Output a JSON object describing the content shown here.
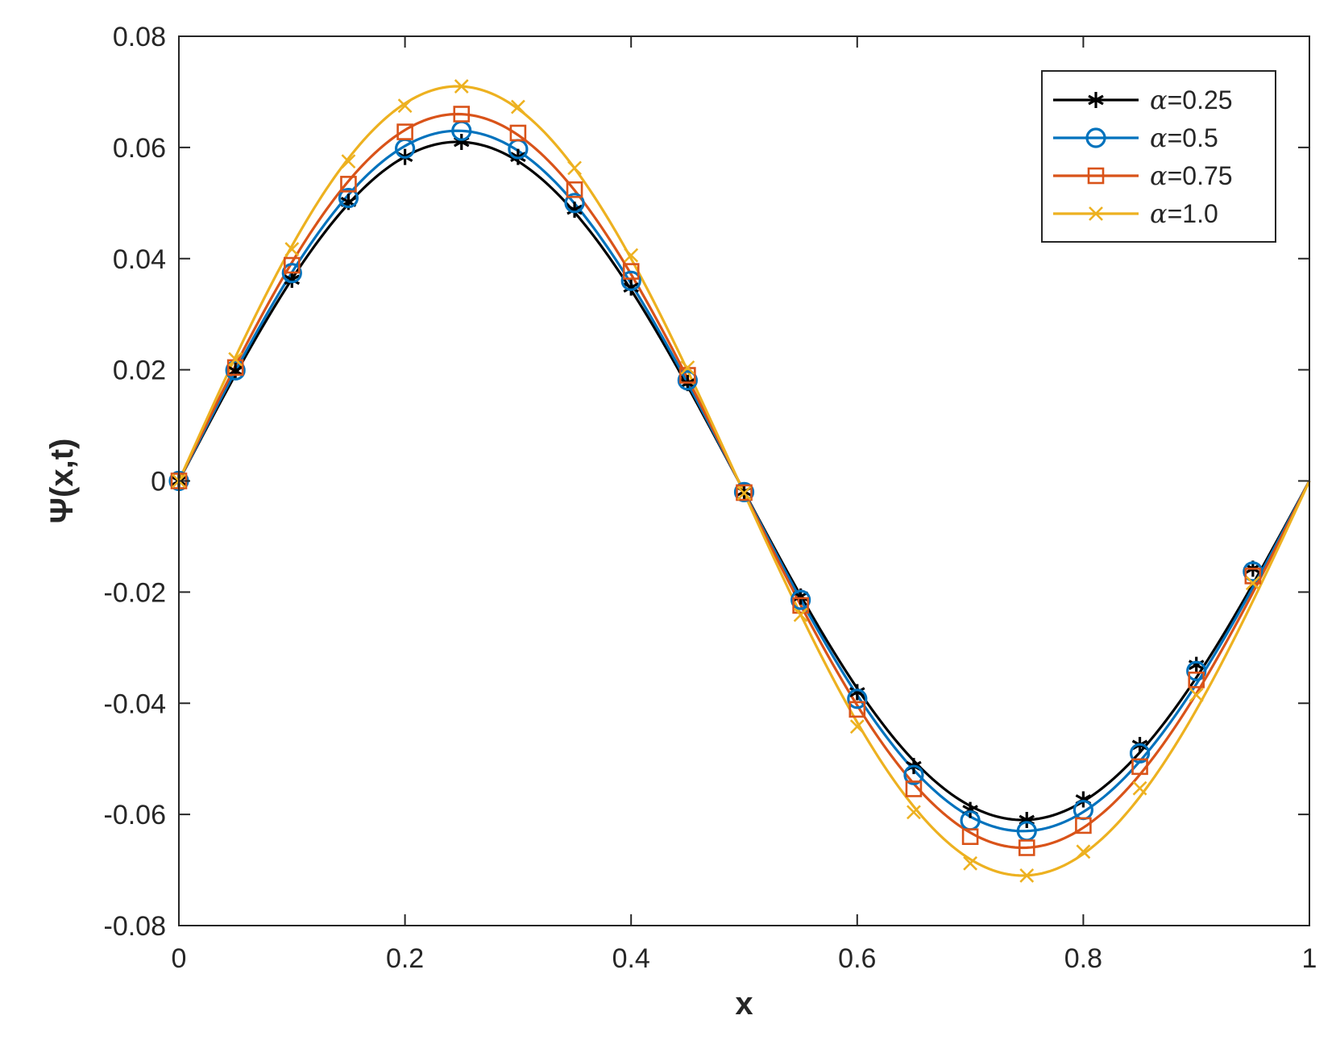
{
  "chart_data": {
    "type": "line",
    "title": "",
    "xlabel": "x",
    "ylabel": "Ψ(x,t)",
    "xlim": [
      0,
      1
    ],
    "ylim": [
      -0.08,
      0.08
    ],
    "xticks": [
      0,
      0.2,
      0.4,
      0.6,
      0.8,
      1
    ],
    "yticks": [
      -0.08,
      -0.06,
      -0.04,
      -0.02,
      0,
      0.02,
      0.04,
      0.06,
      0.08
    ],
    "xtick_labels": [
      "0",
      "0.2",
      "0.4",
      "0.6",
      "0.8",
      "1"
    ],
    "ytick_labels": [
      "-0.08",
      "-0.06",
      "-0.04",
      "-0.02",
      "0",
      "0.02",
      "0.04",
      "0.06",
      "0.08"
    ],
    "grid": false,
    "legend_position": "top-right",
    "marker_x": [
      0,
      0.05,
      0.1,
      0.15,
      0.2,
      0.25,
      0.3,
      0.35,
      0.4,
      0.45,
      0.5,
      0.55,
      0.6,
      0.65,
      0.7,
      0.75,
      0.8,
      0.85,
      0.9,
      0.95
    ],
    "series": [
      {
        "name": "α=0.25",
        "legend_symbol": "α",
        "legend_value": "=0.25",
        "amplitude": 0.061,
        "phase": 0.005,
        "color": "#000000",
        "marker": "asterisk",
        "values": [
          0,
          0.0198,
          0.0362,
          0.0502,
          0.0583,
          0.061,
          0.0583,
          0.0488,
          0.0348,
          0.0176,
          -0.0019,
          -0.0208,
          -0.038,
          -0.0513,
          -0.0592,
          -0.061,
          -0.0573,
          -0.0475,
          -0.0331,
          -0.0158
        ]
      },
      {
        "name": "α=0.5",
        "legend_symbol": "α",
        "legend_value": "=0.5",
        "amplitude": 0.063,
        "phase": 0.005,
        "color": "#0072BD",
        "marker": "circle",
        "values": [
          0,
          0.0199,
          0.0374,
          0.0509,
          0.0598,
          0.063,
          0.0597,
          0.05,
          0.036,
          0.0181,
          -0.002,
          -0.0214,
          -0.0392,
          -0.0529,
          -0.0611,
          -0.063,
          -0.0592,
          -0.049,
          -0.0342,
          -0.0163
        ]
      },
      {
        "name": "α=0.75",
        "legend_symbol": "α",
        "legend_value": "=0.75",
        "amplitude": 0.066,
        "phase": 0.005,
        "color": "#D95319",
        "marker": "square",
        "values": [
          0,
          0.0204,
          0.0388,
          0.0534,
          0.0628,
          0.066,
          0.0626,
          0.0524,
          0.0377,
          0.019,
          -0.0021,
          -0.0224,
          -0.0411,
          -0.0554,
          -0.064,
          -0.066,
          -0.062,
          -0.0514,
          -0.0358,
          -0.0171
        ]
      },
      {
        "name": "α=1.0",
        "legend_symbol": "α",
        "legend_value": "=1.0",
        "amplitude": 0.071,
        "phase": 0.005,
        "color": "#EDB120",
        "marker": "x",
        "values": [
          0,
          0.0219,
          0.0417,
          0.0575,
          0.0675,
          0.071,
          0.0673,
          0.0563,
          0.0406,
          0.0204,
          -0.0022,
          -0.0241,
          -0.0442,
          -0.0596,
          -0.0688,
          -0.071,
          -0.0667,
          -0.0553,
          -0.0385,
          -0.0184
        ]
      }
    ]
  }
}
